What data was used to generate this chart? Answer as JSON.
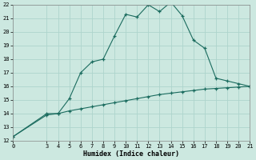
{
  "title": "",
  "xlabel": "Humidex (Indice chaleur)",
  "ylabel": "",
  "bg_color": "#cce8e0",
  "line_color": "#1a6b5e",
  "grid_color": "#aed4cc",
  "xlim": [
    0,
    21
  ],
  "ylim": [
    12,
    22
  ],
  "xticks": [
    0,
    3,
    4,
    5,
    6,
    7,
    8,
    9,
    10,
    11,
    12,
    13,
    14,
    15,
    16,
    17,
    18,
    19,
    20,
    21
  ],
  "yticks": [
    12,
    13,
    14,
    15,
    16,
    17,
    18,
    19,
    20,
    21,
    22
  ],
  "line1_x": [
    0,
    3,
    4,
    5,
    6,
    7,
    8,
    9,
    10,
    11,
    12,
    13,
    14,
    15,
    16,
    17,
    18,
    19,
    20,
    21
  ],
  "line1_y": [
    12.3,
    14.0,
    14.0,
    15.1,
    17.0,
    17.8,
    18.0,
    19.7,
    21.3,
    21.1,
    22.0,
    21.5,
    22.2,
    21.2,
    19.4,
    18.8,
    16.6,
    16.4,
    16.2,
    16.0
  ],
  "line2_x": [
    0,
    3,
    4,
    5,
    6,
    7,
    8,
    9,
    10,
    11,
    12,
    13,
    14,
    15,
    16,
    17,
    18,
    19,
    20,
    21
  ],
  "line2_y": [
    12.3,
    13.9,
    14.0,
    14.2,
    14.35,
    14.5,
    14.65,
    14.8,
    14.95,
    15.1,
    15.25,
    15.4,
    15.5,
    15.6,
    15.7,
    15.8,
    15.85,
    15.9,
    15.95,
    16.0
  ]
}
